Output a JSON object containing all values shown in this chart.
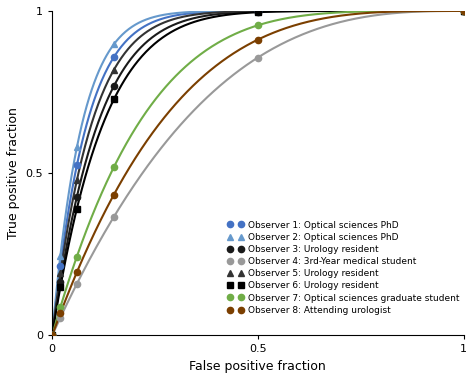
{
  "observers": [
    {
      "label": "Observer 1: Optical sciences PhD",
      "color": "#4472C4",
      "marker": "o",
      "alpha_param": 12.0
    },
    {
      "label": "Observer 2: Optical sciences PhD",
      "color": "#6699CC",
      "marker": "^",
      "alpha_param": 14.0
    },
    {
      "label": "Observer 3: Urology resident",
      "color": "#1a1a1a",
      "marker": "o",
      "alpha_param": 9.0
    },
    {
      "label": "Observer 4: 3rd-Year medical student",
      "color": "#999999",
      "marker": "o",
      "alpha_param": 2.8
    },
    {
      "label": "Observer 5: Urology resident",
      "color": "#333333",
      "marker": "^",
      "alpha_param": 10.5
    },
    {
      "label": "Observer 6: Urology resident",
      "color": "#000000",
      "marker": "s",
      "alpha_param": 8.0
    },
    {
      "label": "Observer 7: Optical sciences graduate student",
      "color": "#70AD47",
      "marker": "o",
      "alpha_param": 4.5
    },
    {
      "label": "Observer 8: Attending urologist",
      "color": "#7B3F00",
      "marker": "o",
      "alpha_param": 3.5
    }
  ],
  "marker_fpr_positions": [
    0.0,
    0.02,
    0.06,
    0.15,
    0.5,
    1.0
  ],
  "xlabel": "False positive fraction",
  "ylabel": "True positive fraction",
  "xlim": [
    0,
    1
  ],
  "ylim": [
    0,
    1
  ],
  "xticks": [
    0,
    0.5,
    1
  ],
  "yticks": [
    0,
    0.5,
    1
  ],
  "background_color": "#ffffff",
  "legend_fontsize": 6.5,
  "axis_fontsize": 9,
  "linewidth": 1.5,
  "markersize": 4.5
}
